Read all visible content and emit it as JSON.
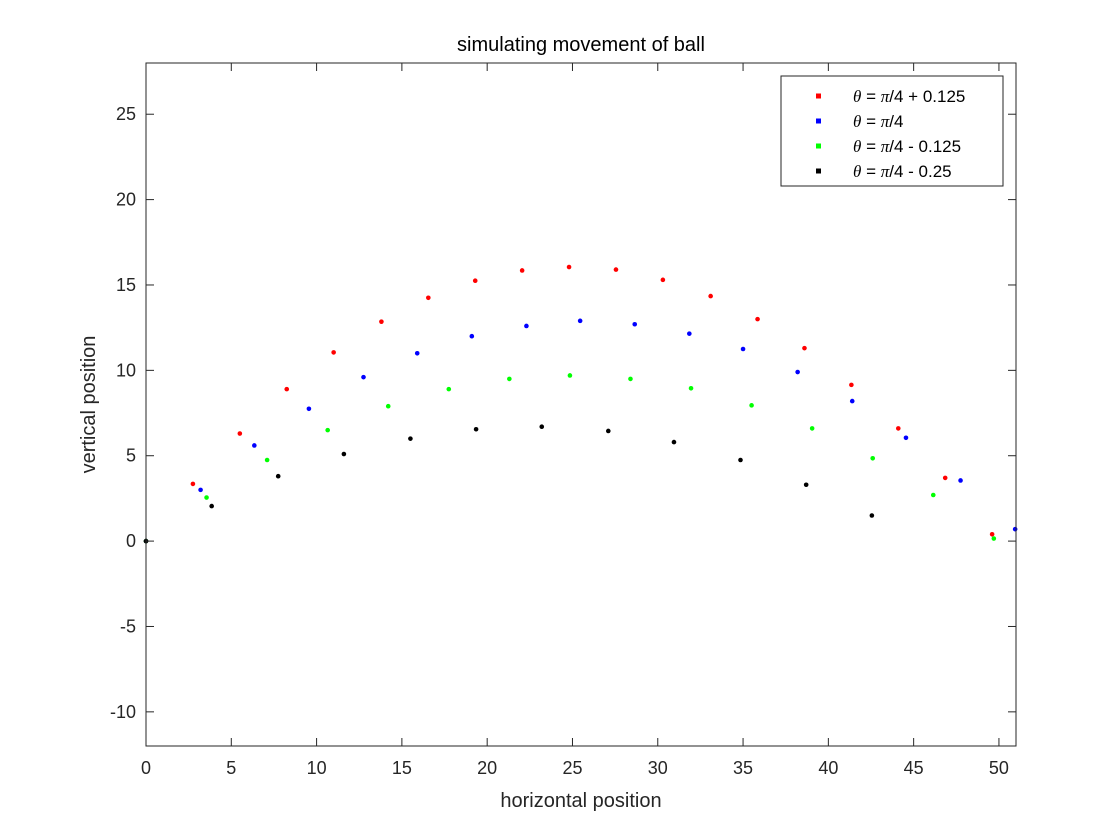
{
  "chart_data": {
    "type": "scatter",
    "title": "simulating movement of ball",
    "xlabel": "horizontal position",
    "ylabel": "vertical position",
    "xlim": [
      0,
      51
    ],
    "ylim": [
      -12,
      28
    ],
    "xticks": [
      0,
      5,
      10,
      15,
      20,
      25,
      30,
      35,
      40,
      45,
      50
    ],
    "yticks": [
      -10,
      -5,
      0,
      5,
      10,
      15,
      20,
      25
    ],
    "xtick_labels": [
      "0",
      "5",
      "10",
      "15",
      "20",
      "25",
      "30",
      "35",
      "40",
      "45",
      "50"
    ],
    "ytick_labels": [
      "-10",
      "-5",
      "0",
      "5",
      "10",
      "15",
      "20",
      "25"
    ],
    "grid": false,
    "legend_position": "top-right",
    "series": [
      {
        "name": "θ = π/4 + 0.125",
        "legend_parts": [
          "θ",
          " = ",
          "π",
          "/4 + 0.125"
        ],
        "color": "#ff0000",
        "points": [
          [
            0,
            0
          ],
          [
            2.75,
            3.35
          ],
          [
            5.5,
            6.3
          ],
          [
            8.25,
            8.9
          ],
          [
            11.0,
            11.05
          ],
          [
            13.8,
            12.85
          ],
          [
            16.55,
            14.25
          ],
          [
            19.3,
            15.25
          ],
          [
            22.05,
            15.85
          ],
          [
            24.8,
            16.05
          ],
          [
            27.55,
            15.9
          ],
          [
            30.3,
            15.3
          ],
          [
            33.1,
            14.35
          ],
          [
            35.85,
            13.0
          ],
          [
            38.6,
            11.3
          ],
          [
            41.35,
            9.15
          ],
          [
            44.1,
            6.6
          ],
          [
            46.85,
            3.7
          ],
          [
            49.6,
            0.4
          ]
        ]
      },
      {
        "name": "θ = π/4",
        "legend_parts": [
          "θ",
          " = ",
          "π",
          "/4"
        ],
        "color": "#0000ff",
        "points": [
          [
            0,
            0
          ],
          [
            3.2,
            3.0
          ],
          [
            6.35,
            5.6
          ],
          [
            9.55,
            7.75
          ],
          [
            12.75,
            9.6
          ],
          [
            15.9,
            11.0
          ],
          [
            19.1,
            12.0
          ],
          [
            22.3,
            12.6
          ],
          [
            25.45,
            12.9
          ],
          [
            28.65,
            12.7
          ],
          [
            31.85,
            12.15
          ],
          [
            35.0,
            11.25
          ],
          [
            38.2,
            9.9
          ],
          [
            41.4,
            8.2
          ],
          [
            44.55,
            6.05
          ],
          [
            47.75,
            3.55
          ],
          [
            50.95,
            0.7
          ]
        ]
      },
      {
        "name": "θ = π/4 - 0.125",
        "legend_parts": [
          "θ",
          " = ",
          "π",
          "/4 - 0.125"
        ],
        "color": "#00ff00",
        "points": [
          [
            0,
            0
          ],
          [
            3.55,
            2.55
          ],
          [
            7.1,
            4.75
          ],
          [
            10.65,
            6.5
          ],
          [
            14.2,
            7.9
          ],
          [
            17.75,
            8.9
          ],
          [
            21.3,
            9.5
          ],
          [
            24.85,
            9.7
          ],
          [
            28.4,
            9.5
          ],
          [
            31.95,
            8.95
          ],
          [
            35.5,
            7.95
          ],
          [
            39.05,
            6.6
          ],
          [
            42.6,
            4.85
          ],
          [
            46.15,
            2.7
          ],
          [
            49.7,
            0.15
          ]
        ]
      },
      {
        "name": "θ = π/4 - 0.25",
        "legend_parts": [
          "θ",
          " = ",
          "π",
          "/4 - 0.25"
        ],
        "color": "#000000",
        "points": [
          [
            0,
            0
          ],
          [
            3.85,
            2.05
          ],
          [
            7.75,
            3.8
          ],
          [
            11.6,
            5.1
          ],
          [
            15.5,
            6.0
          ],
          [
            19.35,
            6.55
          ],
          [
            23.2,
            6.7
          ],
          [
            27.1,
            6.45
          ],
          [
            30.95,
            5.8
          ],
          [
            34.85,
            4.75
          ],
          [
            38.7,
            3.3
          ],
          [
            42.55,
            1.5
          ]
        ]
      }
    ]
  }
}
